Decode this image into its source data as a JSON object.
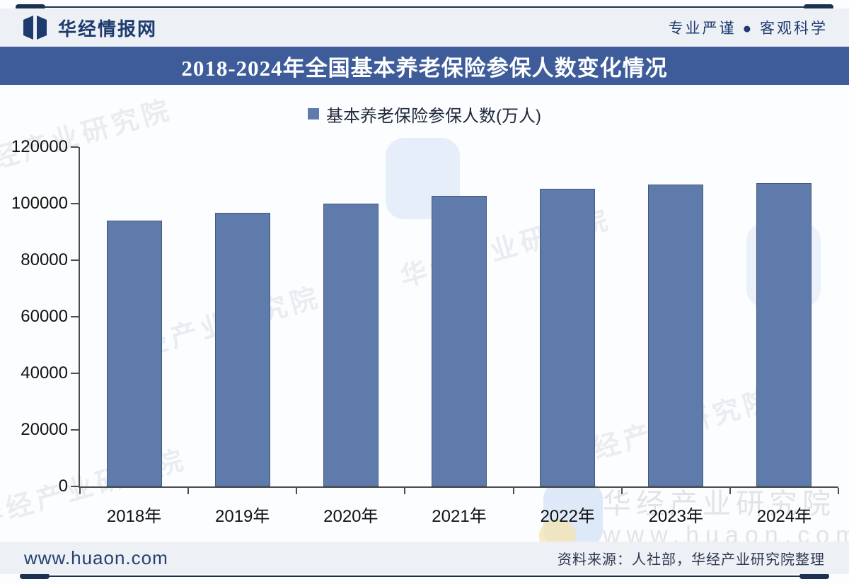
{
  "page": {
    "header": {
      "site_name": "华经情报网",
      "slogan": "专业严谨 ● 客观科学"
    },
    "title": "2018-2024年全国基本养老保险参保人数变化情况",
    "footer": {
      "website": "www.huaon.com",
      "source": "资料来源：人社部，华经产业研究院整理"
    },
    "watermark": {
      "diagonal_text": "华经产业研究院",
      "bottom_text_line1": "华经产业研究院",
      "bottom_text_line2": "www.huaon.com"
    },
    "colors": {
      "bar": "#5e7bac",
      "bar_border": "#44597b",
      "title_bar_bg": "#3d5c99",
      "navy_text": "#1e3a6e",
      "rule_line": "#1c3050"
    }
  },
  "chart_data": {
    "type": "bar",
    "title": "2018-2024年全国基本养老保险参保人数变化情况",
    "legend": [
      "基本养老保险参保人数(万人)"
    ],
    "legend_position": "top-center",
    "categories": [
      "2018年",
      "2019年",
      "2020年",
      "2021年",
      "2022年",
      "2023年",
      "2024年"
    ],
    "values": [
      94000,
      96750,
      100000,
      102800,
      105300,
      106650,
      107250
    ],
    "xlabel": "",
    "ylabel": "",
    "ylim": [
      0,
      120000
    ],
    "yticks": [
      0,
      20000,
      40000,
      60000,
      80000,
      100000,
      120000
    ],
    "grid": false
  }
}
